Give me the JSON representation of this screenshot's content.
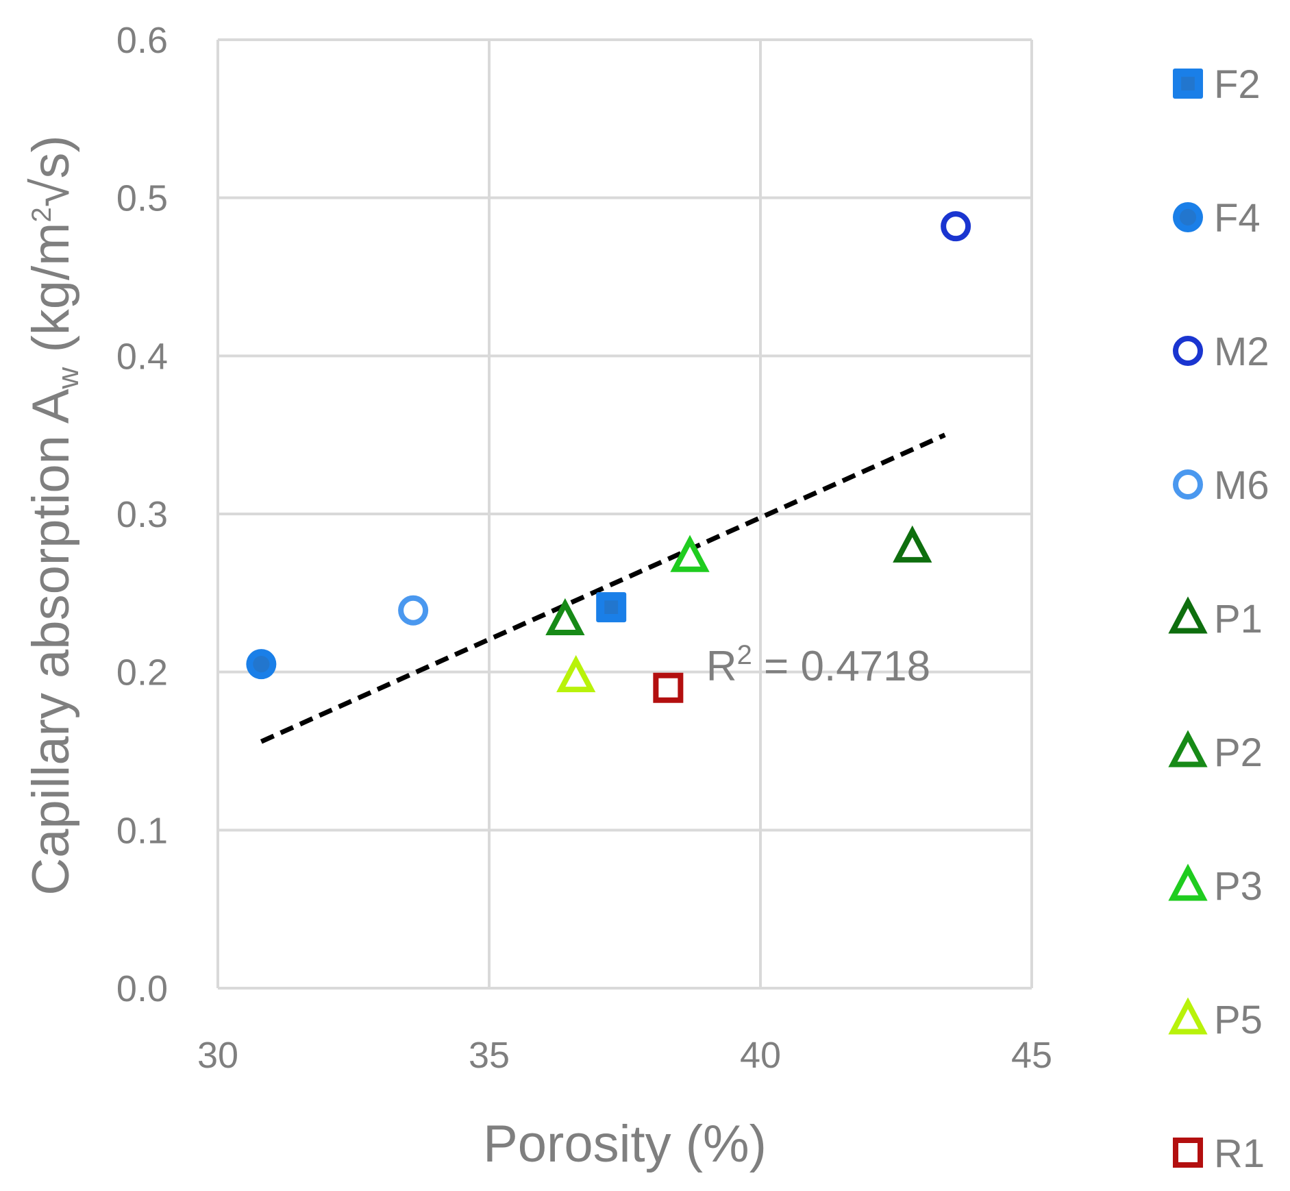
{
  "chart_data": {
    "type": "scatter",
    "xlabel": "Porosity (%)",
    "ylabel": {
      "prefix": "Capillary absorption A",
      "subscript": "w",
      "units_prefix": " (kg/m",
      "superscript": "2",
      "units_suffix": "√s)"
    },
    "xlim": [
      30,
      45
    ],
    "ylim": [
      0.0,
      0.6
    ],
    "xticks": [
      "30",
      "35",
      "40",
      "45"
    ],
    "xtick_values": [
      30,
      35,
      40,
      45
    ],
    "yticks": [
      "0.0",
      "0.1",
      "0.2",
      "0.3",
      "0.4",
      "0.5",
      "0.6"
    ],
    "ytick_values": [
      0.0,
      0.1,
      0.2,
      0.3,
      0.4,
      0.5,
      0.6
    ],
    "grid": true,
    "legend_position": "right",
    "series": [
      {
        "name": "F2",
        "marker": "square-filled",
        "color": "#1a7fe8",
        "x": 37.25,
        "y": 0.241
      },
      {
        "name": "F4",
        "marker": "circle-filled",
        "color": "#1a7fe8",
        "x": 30.8,
        "y": 0.205
      },
      {
        "name": "M2",
        "marker": "circle-open",
        "color": "#1a35d0",
        "x": 43.6,
        "y": 0.482
      },
      {
        "name": "M6",
        "marker": "circle-open",
        "color": "#4a98ef",
        "x": 33.6,
        "y": 0.239
      },
      {
        "name": "P1",
        "marker": "triangle-open",
        "color": "#0e6e0e",
        "x": 42.8,
        "y": 0.279
      },
      {
        "name": "P2",
        "marker": "triangle-open",
        "color": "#178a17",
        "x": 36.4,
        "y": 0.233
      },
      {
        "name": "P3",
        "marker": "triangle-open",
        "color": "#1fcc1f",
        "x": 38.7,
        "y": 0.273
      },
      {
        "name": "P5",
        "marker": "triangle-open",
        "color": "#b8f20a",
        "x": 36.6,
        "y": 0.197
      },
      {
        "name": "R1",
        "marker": "square-open",
        "color": "#b30f0f",
        "x": 38.3,
        "y": 0.19
      }
    ],
    "trendline": {
      "style": "dashed",
      "color": "#000000",
      "x": [
        30.8,
        43.4
      ],
      "y": [
        0.156,
        0.35
      ]
    },
    "annotation": {
      "prefix": "R",
      "superscript": "2",
      "suffix": " = 0.4718",
      "x": 39.0,
      "y": 0.205
    }
  }
}
